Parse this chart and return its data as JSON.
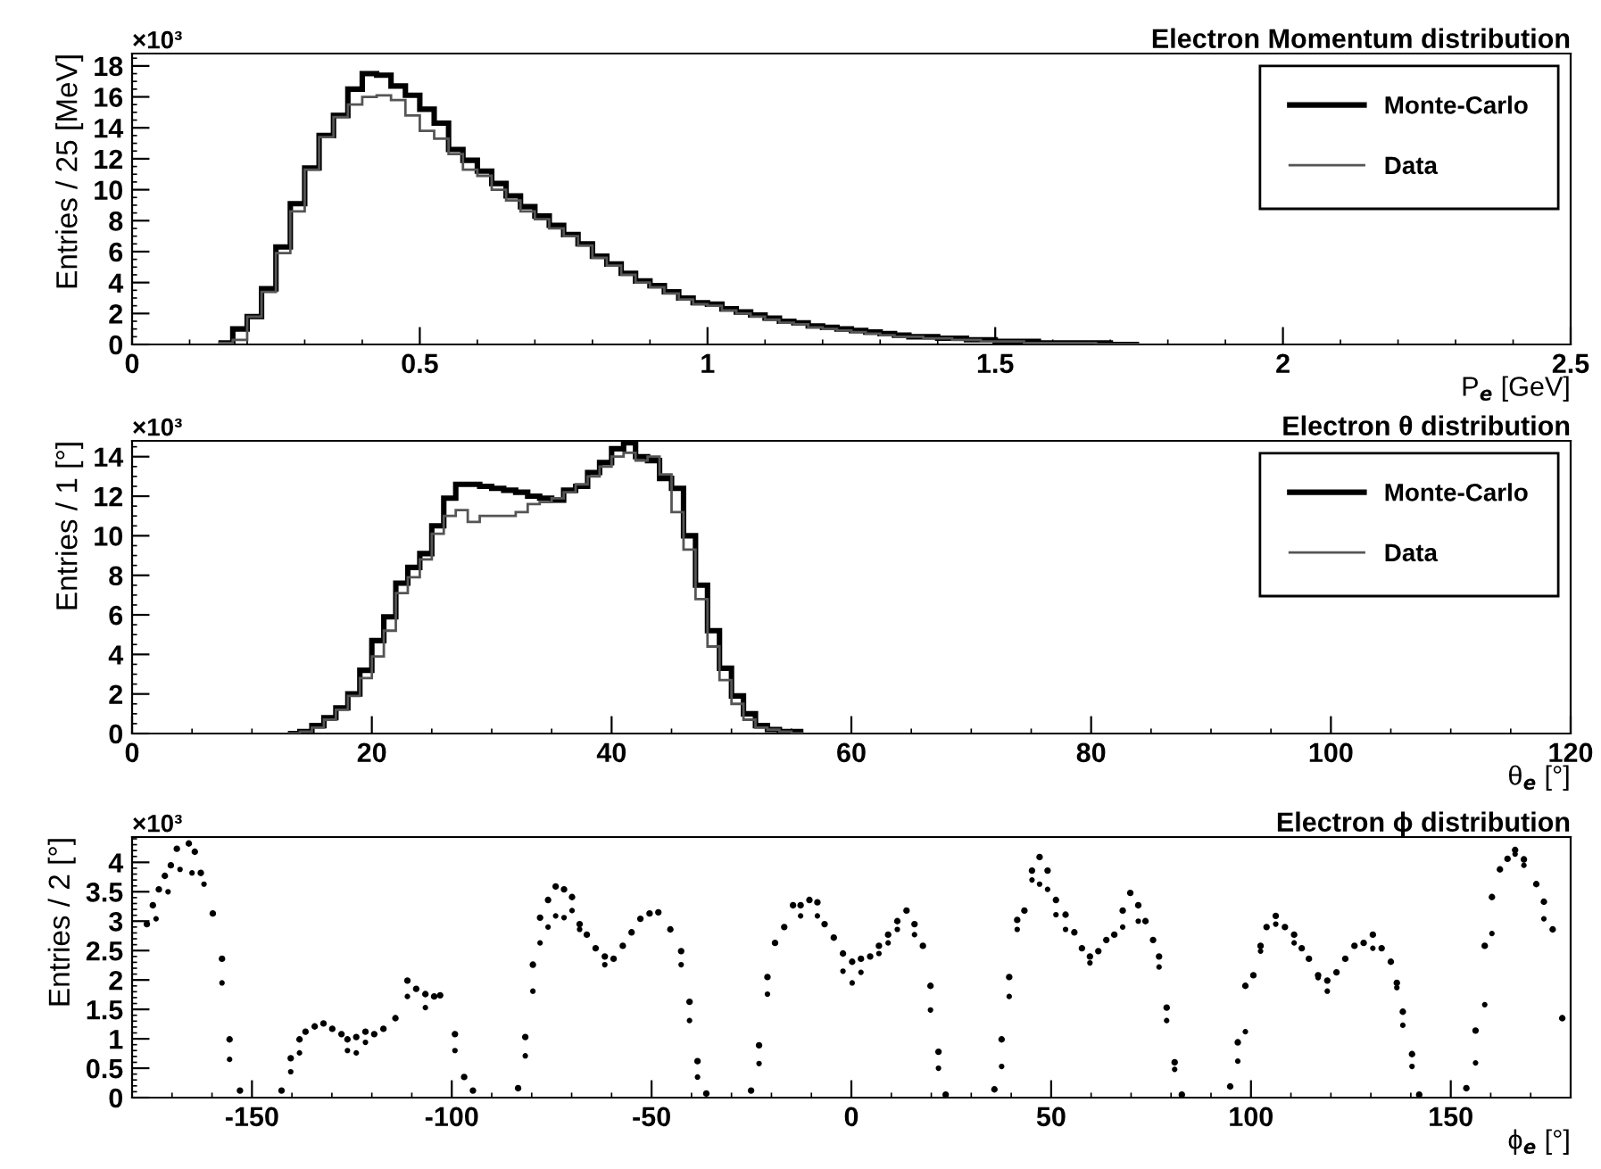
{
  "chart_data": [
    {
      "type": "histogram",
      "title": "Electron Momentum distribution",
      "xlabel": "P$_{e}$ [GeV]",
      "ylabel": "Entries / 25 [MeV]",
      "annotations": [
        "×10³"
      ],
      "bins": [
        0.15,
        0.175,
        0.2,
        0.225,
        0.25,
        0.275,
        0.3,
        0.325,
        0.35,
        0.375,
        0.4,
        0.425,
        0.45,
        0.475,
        0.5,
        0.525,
        0.55,
        0.575,
        0.6,
        0.625,
        0.65,
        0.675,
        0.7,
        0.725,
        0.75,
        0.775,
        0.8,
        0.825,
        0.85,
        0.875,
        0.9,
        0.925,
        0.95,
        0.975,
        1.0,
        1.025,
        1.05,
        1.075,
        1.1,
        1.125,
        1.15,
        1.175,
        1.2,
        1.225,
        1.25,
        1.275,
        1.3,
        1.325,
        1.35,
        1.375,
        1.4,
        1.425,
        1.45,
        1.475,
        1.5,
        1.525,
        1.55,
        1.575,
        1.6,
        1.625,
        1.65,
        1.675,
        1.7,
        1.725,
        1.75
      ],
      "series": [
        {
          "name": "Monte-Carlo",
          "color": "#000000",
          "values": [
            0.1,
            1.0,
            1.8,
            3.6,
            6.3,
            9.1,
            11.4,
            13.5,
            14.8,
            16.5,
            17.5,
            17.4,
            16.7,
            16.1,
            15.2,
            14.3,
            12.6,
            11.9,
            11.2,
            10.4,
            9.6,
            8.9,
            8.3,
            7.7,
            7.1,
            6.5,
            5.7,
            5.2,
            4.6,
            4.1,
            3.8,
            3.4,
            3.0,
            2.7,
            2.6,
            2.3,
            2.1,
            1.9,
            1.7,
            1.5,
            1.4,
            1.2,
            1.1,
            1.0,
            0.9,
            0.8,
            0.7,
            0.6,
            0.5,
            0.5,
            0.4,
            0.4,
            0.3,
            0.3,
            0.2,
            0.2,
            0.2,
            0.1,
            0.1,
            0.1,
            0.1,
            0.1,
            0,
            0
          ]
        },
        {
          "name": "Data",
          "color": "#555555",
          "values": [
            0.1,
            0.3,
            1.8,
            3.4,
            5.9,
            8.6,
            11.3,
            13.4,
            14.7,
            15.5,
            16.0,
            16.1,
            15.8,
            14.8,
            13.8,
            13.3,
            12.3,
            11.3,
            10.9,
            10.0,
            9.3,
            8.6,
            8.1,
            7.5,
            7.0,
            6.4,
            5.6,
            5.1,
            4.5,
            4.0,
            3.7,
            3.3,
            2.9,
            2.6,
            2.5,
            2.2,
            2.0,
            1.8,
            1.6,
            1.4,
            1.3,
            1.1,
            1.0,
            0.9,
            0.8,
            0.7,
            0.6,
            0.5,
            0.5,
            0.4,
            0.4,
            0.3,
            0.3,
            0.2,
            0.2,
            0.2,
            0.1,
            0.1,
            0.1,
            0.1,
            0.1,
            0,
            0,
            0
          ]
        }
      ],
      "xlim": [
        0,
        2.5
      ],
      "xticks": [
        0,
        0.5,
        1,
        1.5,
        2,
        2.5
      ],
      "ylim": [
        0,
        18.8
      ],
      "yticks": [
        0,
        2,
        4,
        6,
        8,
        10,
        12,
        14,
        16,
        18
      ],
      "legend": "top right",
      "grid": false
    },
    {
      "type": "histogram",
      "title": "Electron θ distribution",
      "xlabel": "θ$_{e}$ [°]",
      "ylabel": "Entries / 1 [°]",
      "annotations": [
        "×10³"
      ],
      "bins": [
        13,
        14,
        15,
        16,
        17,
        18,
        19,
        20,
        21,
        22,
        23,
        24,
        25,
        26,
        27,
        28,
        29,
        30,
        31,
        32,
        33,
        34,
        35,
        36,
        37,
        38,
        39,
        40,
        41,
        42,
        43,
        44,
        45,
        46,
        47,
        48,
        49,
        50,
        51,
        52,
        53,
        54,
        55,
        56
      ],
      "series": [
        {
          "name": "Monte-Carlo",
          "color": "#000000",
          "values": [
            0,
            0.1,
            0.4,
            0.8,
            1.3,
            2.0,
            3.2,
            4.7,
            5.9,
            7.6,
            8.4,
            9.1,
            10.5,
            11.9,
            12.6,
            12.6,
            12.5,
            12.4,
            12.3,
            12.2,
            12.0,
            11.9,
            11.8,
            12.3,
            12.5,
            13.2,
            13.7,
            14.4,
            14.7,
            14.0,
            13.8,
            12.9,
            12.4,
            10.0,
            7.5,
            5.2,
            3.3,
            1.9,
            1.0,
            0.4,
            0.2,
            0.1,
            0.1
          ]
        },
        {
          "name": "Data",
          "color": "#555555",
          "values": [
            0,
            0.1,
            0.3,
            0.7,
            1.2,
            1.9,
            2.8,
            3.9,
            5.2,
            7.1,
            7.9,
            8.8,
            10.1,
            11.0,
            11.3,
            10.7,
            11.0,
            11.0,
            11.0,
            11.2,
            11.6,
            11.7,
            11.9,
            12.2,
            12.6,
            13.0,
            13.5,
            14.0,
            14.2,
            13.8,
            14.0,
            13.1,
            11.2,
            9.3,
            6.8,
            4.4,
            2.7,
            1.5,
            0.7,
            0.3,
            0.2,
            0.1,
            0
          ]
        }
      ],
      "xlim": [
        0,
        120
      ],
      "xticks": [
        0,
        20,
        40,
        60,
        80,
        100,
        120
      ],
      "ylim": [
        0,
        14.8
      ],
      "yticks": [
        0,
        2,
        4,
        6,
        8,
        10,
        12,
        14
      ],
      "legend": "top right",
      "grid": false
    },
    {
      "type": "scatter",
      "title": "Electron ϕ distribution",
      "xlabel": "ϕ$_{e}$ [°]",
      "ylabel": "Entries / 2 [°]",
      "annotations": [
        "×10³"
      ],
      "marker": "circle",
      "series": [
        {
          "color": "#000000",
          "x": [
            -176.3,
            -174.8,
            -173.3,
            -171.8,
            -170.3,
            -168.8,
            -165.8,
            -164.3,
            -162.8,
            -159.8,
            -157.5,
            -155.6,
            -153,
            -142.6,
            -140.3,
            -138.1,
            -136.6,
            -134.3,
            -132.1,
            -129.9,
            -127.6,
            -126.1,
            -123.9,
            -121.6,
            -119.4,
            -117.1,
            -114.1,
            -111.1,
            -108.9,
            -106.6,
            -104.4,
            -102.9,
            -99.2,
            -96.9,
            -94.7,
            -83.4,
            -81.6,
            -79.7,
            -77.9,
            -75.9,
            -74,
            -71.9,
            -69.9,
            -68,
            -66.2,
            -64,
            -61.7,
            -59.5,
            -57.2,
            -55,
            -52.8,
            -50.5,
            -48.3,
            -45.3,
            -42.6,
            -40.5,
            -38.5,
            -36.3,
            -25.1,
            -23.1,
            -21,
            -19.1,
            -16.8,
            -14.6,
            -12.7,
            -10.5,
            -8.5,
            -6.7,
            -4.4,
            -2.1,
            0.2,
            2.4,
            4.7,
            6.9,
            9.2,
            11.5,
            13.8,
            15.8,
            17.9,
            19.8,
            21.8,
            23.6,
            35.8,
            37.6,
            39.5,
            41.5,
            43.3,
            45.2,
            47.1,
            49.1,
            51.2,
            53.6,
            55.8,
            57.7,
            59.7,
            61.8,
            63.8,
            65.8,
            67.9,
            69.8,
            71.8,
            73.6,
            75.5,
            77,
            78.9,
            80.9,
            82.7,
            94.8,
            96.7,
            98.6,
            100.6,
            102.4,
            103.9,
            106.2,
            108.5,
            110.8,
            112.7,
            114.5,
            116.8,
            119.1,
            121.4,
            123.6,
            125.9,
            128.2,
            130.5,
            132.7,
            135,
            136.5,
            138,
            140.3,
            142.1,
            153.9,
            156.2,
            158.5,
            160.3,
            162.3,
            164.2,
            166.1,
            168.3,
            171.4,
            173.3,
            175.5,
            177.9
          ],
          "values": [
            2.95,
            3.27,
            3.54,
            3.77,
            3.95,
            4.23,
            4.32,
            4.18,
            3.82,
            3.13,
            2.36,
            0.99,
            0.12,
            0.12,
            0.67,
            0.99,
            1.12,
            1.21,
            1.26,
            1.17,
            1.08,
            0.99,
            1.03,
            1.12,
            1.08,
            1.17,
            1.35,
            1.99,
            1.85,
            1.76,
            1.72,
            1.74,
            1.08,
            0.35,
            0.12,
            0.16,
            1.03,
            2.26,
            3.06,
            3.36,
            3.59,
            3.54,
            3.41,
            2.95,
            2.77,
            2.54,
            2.4,
            2.36,
            2.58,
            2.81,
            3.04,
            3.13,
            3.15,
            2.86,
            2.49,
            1.63,
            0.62,
            0.07,
            0.12,
            0.89,
            2.05,
            2.63,
            2.9,
            3.27,
            3.27,
            3.36,
            3.32,
            2.95,
            2.72,
            2.45,
            2.31,
            2.36,
            2.4,
            2.58,
            2.77,
            3.0,
            3.18,
            2.95,
            2.58,
            1.9,
            0.78,
            0.05,
            0.14,
            0.99,
            2.05,
            3.02,
            3.18,
            3.86,
            4.09,
            3.86,
            3.36,
            3.11,
            2.81,
            2.54,
            2.4,
            2.49,
            2.68,
            2.77,
            3.18,
            3.48,
            3.27,
            3.0,
            2.68,
            2.4,
            1.53,
            0.6,
            0.05,
            0.19,
            0.94,
            1.9,
            2.08,
            2.58,
            2.9,
            3.09,
            2.9,
            2.77,
            2.54,
            2.36,
            2.08,
            1.99,
            2.13,
            2.36,
            2.58,
            2.63,
            2.77,
            2.54,
            2.31,
            1.95,
            1.46,
            0.74,
            0.05,
            0.16,
            1.14,
            2.58,
            3.41,
            3.88,
            4.06,
            4.21,
            4.05,
            3.63,
            3.33,
            2.86,
            1.35
          ]
        },
        {
          "color": "#000000",
          "x": [
            -174,
            -171,
            -168,
            -165,
            -162,
            -157.5,
            -155.6,
            -140.3,
            -138.1,
            -126.1,
            -123.9,
            -121.6,
            -111.1,
            -106.6,
            -99.2,
            -81.6,
            -79.7,
            -77.9,
            -75.9,
            -74,
            -71.9,
            -69.9,
            -68,
            -61.7,
            -42.6,
            -40.5,
            -38.5,
            -23.1,
            -21,
            -12.7,
            -8.5,
            -2.1,
            0.2,
            2.4,
            6.9,
            9.2,
            11.5,
            15.8,
            19.8,
            21.8,
            37.6,
            39.5,
            41.5,
            45.2,
            47.1,
            49.1,
            51.2,
            53.6,
            59.7,
            67.9,
            71.8,
            77,
            78.9,
            80.9,
            96.7,
            98.6,
            102.4,
            106.2,
            110.8,
            116.8,
            119.1,
            130.5,
            136.5,
            138,
            140.3,
            156.2,
            158.5,
            160.3,
            166.1,
            168.3,
            173.3
          ],
          "values": [
            3.04,
            3.5,
            3.88,
            3.82,
            3.63,
            1.95,
            0.65,
            0.44,
            0.76,
            0.8,
            0.76,
            0.94,
            1.72,
            1.53,
            0.8,
            0.71,
            1.81,
            2.63,
            2.9,
            3.09,
            3.06,
            3.18,
            2.86,
            2.26,
            2.26,
            1.31,
            0.35,
            0.58,
            1.76,
            3.09,
            3.09,
            2.15,
            1.95,
            2.13,
            2.45,
            2.63,
            2.86,
            2.77,
            1.49,
            0.5,
            0.53,
            1.72,
            2.86,
            3.7,
            3.63,
            3.54,
            3.11,
            2.86,
            2.29,
            2.9,
            3.0,
            2.22,
            1.31,
            0.48,
            0.62,
            1.12,
            2.49,
            2.95,
            2.63,
            2.04,
            1.81,
            2.54,
            1.87,
            1.23,
            0.53,
            0.59,
            1.58,
            2.79,
            4.14,
            3.95,
            3.04
          ]
        }
      ],
      "xlim": [
        -180,
        180
      ],
      "xticks": [
        -150,
        -100,
        -50,
        0,
        50,
        100,
        150
      ],
      "ylim": [
        0,
        4.43
      ],
      "yticks": [
        0,
        0.5,
        1,
        1.5,
        2,
        2.5,
        3,
        3.5,
        4
      ],
      "legend": false,
      "grid": false
    }
  ]
}
